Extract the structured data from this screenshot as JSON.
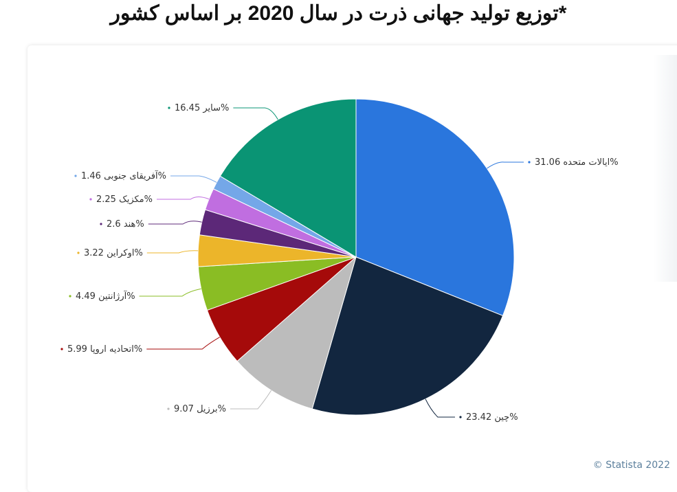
{
  "title": "*توزیع تولید جهانی ذرت در سال 2020  بر اساس کشور",
  "credit": "© Statista 2022",
  "chart_data": {
    "type": "pie",
    "title": "*توزیع تولید جهانی ذرت در سال 2020  بر اساس کشور",
    "unit": "%",
    "start": "top",
    "direction": "clockwise",
    "slices": [
      {
        "label": "ایالات متحده",
        "value": 31.06,
        "color": "#2a76dd"
      },
      {
        "label": "چین",
        "value": 23.42,
        "color": "#12263f"
      },
      {
        "label": "برزیل",
        "value": 9.07,
        "color": "#bcbcbc"
      },
      {
        "label": "اتحادیه اروپا",
        "value": 5.99,
        "color": "#a50a0a"
      },
      {
        "label": "آرژانتین",
        "value": 4.49,
        "color": "#8abd24"
      },
      {
        "label": "اوکراین",
        "value": 3.22,
        "color": "#ecb52a"
      },
      {
        "label": "هند",
        "value": 2.6,
        "color": "#5c2878"
      },
      {
        "label": "مکزیک",
        "value": 2.25,
        "color": "#c06ee0"
      },
      {
        "label": "آفریقای جنوبی",
        "value": 1.46,
        "color": "#74a7e8"
      },
      {
        "label": "سایر",
        "value": 16.45,
        "color": "#0a9474"
      }
    ]
  }
}
